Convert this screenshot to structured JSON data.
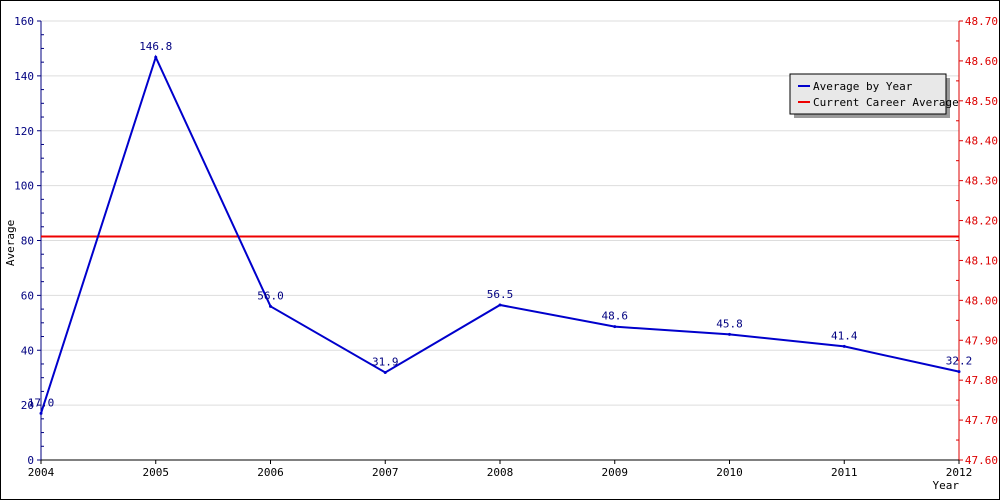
{
  "chart_data": {
    "type": "line",
    "x": [
      2004,
      2005,
      2006,
      2007,
      2008,
      2009,
      2010,
      2011,
      2012
    ],
    "x_tick_labels": [
      "2004",
      "2005",
      "2006",
      "2007",
      "2008",
      "2009",
      "2010",
      "2011",
      "2012"
    ],
    "xlabel": "Year",
    "ylabel": "Average",
    "ylim": [
      0,
      160
    ],
    "y_ticks": [
      0,
      20,
      40,
      60,
      80,
      100,
      120,
      140,
      160
    ],
    "y_tick_labels": [
      "0",
      "20",
      "40",
      "60",
      "80",
      "100",
      "120",
      "140",
      "160"
    ],
    "y2lim": [
      47.6,
      48.7
    ],
    "y2_ticks": [
      47.6,
      47.7,
      47.8,
      47.9,
      48.0,
      48.1,
      48.2,
      48.3,
      48.4,
      48.5,
      48.6,
      48.7
    ],
    "y2_tick_labels": [
      "47.60",
      "47.70",
      "47.80",
      "47.90",
      "48.00",
      "48.10",
      "48.20",
      "48.30",
      "48.40",
      "48.50",
      "48.60",
      "48.70"
    ],
    "grid": true,
    "legend_position": "top-right",
    "series": [
      {
        "name": "Average by Year",
        "axis": "left",
        "color": "#0000cc",
        "values": [
          17.0,
          146.8,
          56.0,
          31.9,
          56.5,
          48.6,
          45.8,
          41.4,
          32.2
        ],
        "labels": [
          "17.0",
          "146.8",
          "56.0",
          "31.9",
          "56.5",
          "48.6",
          "45.8",
          "41.4",
          "32.2"
        ]
      },
      {
        "name": "Current Career Average",
        "axis": "right",
        "color": "#ee0000",
        "value": 48.16
      }
    ],
    "colors": {
      "left_axis": "#000080",
      "right_axis": "#dd0000",
      "grid": "#dddddd"
    }
  }
}
